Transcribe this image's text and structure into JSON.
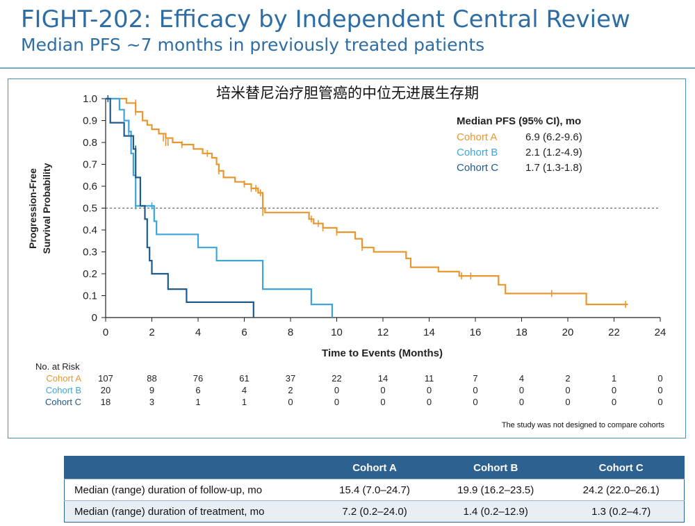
{
  "header": {
    "title": "FIGHT-202: Efficacy by Independent Central Review",
    "subtitle": "Median PFS ~7 months in previously treated patients"
  },
  "chart_data": {
    "type": "line",
    "title": "培米替尼治疗胆管癌的中位无进展生存期",
    "xlabel": "Time to Events (Months)",
    "ylabel": [
      "Progression-Free",
      "Survival Probability"
    ],
    "xlim": [
      0,
      24
    ],
    "ylim": [
      0,
      1.0
    ],
    "xticks": [
      "0",
      "2",
      "4",
      "6",
      "8",
      "10",
      "12",
      "14",
      "16",
      "18",
      "20",
      "22",
      "24"
    ],
    "yticks": [
      "0",
      "0.1",
      "0.2",
      "0.3",
      "0.4",
      "0.5",
      "0.6",
      "0.7",
      "0.8",
      "0.9",
      "1.0"
    ],
    "reference_line_y": 0.5,
    "legend": {
      "title": "Median PFS (95% CI), mo",
      "position": "top-right",
      "entries": [
        {
          "name": "Cohort A",
          "value": "6.9 (6.2-9.6)",
          "color": "#e8962e"
        },
        {
          "name": "Cohort B",
          "value": "2.1 (1.2-4.9)",
          "color": "#3ea5dc"
        },
        {
          "name": "Cohort C",
          "value": "1.7 (1.3-1.8)",
          "color": "#1e5a8c"
        }
      ]
    },
    "series": [
      {
        "name": "Cohort A",
        "color": "#e8962e",
        "points": [
          [
            0,
            1.0
          ],
          [
            0.9,
            1.0
          ],
          [
            0.9,
            0.98
          ],
          [
            1.3,
            0.98
          ],
          [
            1.3,
            0.94
          ],
          [
            1.6,
            0.94
          ],
          [
            1.6,
            0.9
          ],
          [
            1.8,
            0.9
          ],
          [
            1.8,
            0.88
          ],
          [
            2.0,
            0.88
          ],
          [
            2.0,
            0.86
          ],
          [
            2.3,
            0.86
          ],
          [
            2.3,
            0.84
          ],
          [
            2.6,
            0.84
          ],
          [
            2.6,
            0.82
          ],
          [
            2.9,
            0.82
          ],
          [
            2.9,
            0.8
          ],
          [
            3.3,
            0.8
          ],
          [
            3.3,
            0.79
          ],
          [
            3.8,
            0.79
          ],
          [
            3.8,
            0.77
          ],
          [
            4.2,
            0.77
          ],
          [
            4.2,
            0.75
          ],
          [
            4.6,
            0.75
          ],
          [
            4.6,
            0.73
          ],
          [
            4.8,
            0.73
          ],
          [
            4.8,
            0.7
          ],
          [
            4.9,
            0.7
          ],
          [
            4.9,
            0.67
          ],
          [
            5.1,
            0.67
          ],
          [
            5.1,
            0.64
          ],
          [
            5.6,
            0.64
          ],
          [
            5.6,
            0.62
          ],
          [
            6.0,
            0.62
          ],
          [
            6.0,
            0.61
          ],
          [
            6.3,
            0.61
          ],
          [
            6.3,
            0.59
          ],
          [
            6.6,
            0.59
          ],
          [
            6.6,
            0.57
          ],
          [
            6.8,
            0.57
          ],
          [
            6.8,
            0.5
          ],
          [
            6.9,
            0.5
          ],
          [
            6.9,
            0.48
          ],
          [
            8.8,
            0.48
          ],
          [
            8.8,
            0.45
          ],
          [
            9.0,
            0.45
          ],
          [
            9.0,
            0.43
          ],
          [
            9.4,
            0.43
          ],
          [
            9.4,
            0.41
          ],
          [
            10.0,
            0.41
          ],
          [
            10.0,
            0.39
          ],
          [
            10.8,
            0.39
          ],
          [
            10.8,
            0.36
          ],
          [
            11.1,
            0.36
          ],
          [
            11.1,
            0.32
          ],
          [
            11.6,
            0.32
          ],
          [
            11.6,
            0.3
          ],
          [
            13.0,
            0.3
          ],
          [
            13.0,
            0.27
          ],
          [
            13.2,
            0.27
          ],
          [
            13.2,
            0.23
          ],
          [
            14.4,
            0.23
          ],
          [
            14.4,
            0.21
          ],
          [
            15.3,
            0.21
          ],
          [
            15.3,
            0.19
          ],
          [
            17.0,
            0.19
          ],
          [
            17.0,
            0.15
          ],
          [
            17.3,
            0.15
          ],
          [
            17.3,
            0.11
          ],
          [
            20.8,
            0.11
          ],
          [
            20.8,
            0.06
          ],
          [
            22.6,
            0.06
          ]
        ],
        "censors": [
          [
            1.3,
            0.98
          ],
          [
            1.3,
            0.94
          ],
          [
            2.5,
            0.82
          ],
          [
            2.6,
            0.8
          ],
          [
            2.7,
            0.8
          ],
          [
            3.3,
            0.79
          ],
          [
            4.4,
            0.75
          ],
          [
            4.9,
            0.67
          ],
          [
            6.0,
            0.61
          ],
          [
            6.3,
            0.59
          ],
          [
            6.5,
            0.59
          ],
          [
            6.7,
            0.57
          ],
          [
            6.8,
            0.52
          ],
          [
            6.8,
            0.48
          ],
          [
            8.9,
            0.45
          ],
          [
            9.2,
            0.43
          ],
          [
            9.4,
            0.41
          ],
          [
            10.0,
            0.39
          ],
          [
            11.1,
            0.34
          ],
          [
            11.1,
            0.32
          ],
          [
            15.4,
            0.19
          ],
          [
            15.8,
            0.19
          ],
          [
            19.3,
            0.11
          ],
          [
            22.5,
            0.06
          ]
        ]
      },
      {
        "name": "Cohort B",
        "color": "#3ea5dc",
        "points": [
          [
            0,
            1.0
          ],
          [
            0.6,
            1.0
          ],
          [
            0.6,
            0.95
          ],
          [
            0.8,
            0.95
          ],
          [
            0.8,
            0.9
          ],
          [
            1.0,
            0.9
          ],
          [
            1.0,
            0.85
          ],
          [
            1.1,
            0.85
          ],
          [
            1.1,
            0.75
          ],
          [
            1.2,
            0.75
          ],
          [
            1.2,
            0.65
          ],
          [
            1.3,
            0.65
          ],
          [
            1.3,
            0.51
          ],
          [
            2.1,
            0.51
          ],
          [
            2.1,
            0.44
          ],
          [
            2.2,
            0.44
          ],
          [
            2.2,
            0.38
          ],
          [
            4.0,
            0.38
          ],
          [
            4.0,
            0.32
          ],
          [
            4.8,
            0.32
          ],
          [
            4.8,
            0.26
          ],
          [
            6.8,
            0.26
          ],
          [
            6.8,
            0.13
          ],
          [
            8.9,
            0.13
          ],
          [
            8.9,
            0.06
          ],
          [
            9.8,
            0.06
          ],
          [
            9.8,
            0.0
          ]
        ],
        "censors": [
          [
            0.6,
            0.97
          ],
          [
            1.0,
            0.85
          ],
          [
            1.3,
            0.51
          ],
          [
            2.0,
            0.51
          ]
        ]
      },
      {
        "name": "Cohort C",
        "color": "#1e5a8c",
        "points": [
          [
            0,
            1.0
          ],
          [
            0.2,
            1.0
          ],
          [
            0.2,
            0.89
          ],
          [
            0.8,
            0.89
          ],
          [
            0.8,
            0.83
          ],
          [
            1.2,
            0.83
          ],
          [
            1.2,
            0.77
          ],
          [
            1.3,
            0.77
          ],
          [
            1.3,
            0.64
          ],
          [
            1.5,
            0.64
          ],
          [
            1.5,
            0.51
          ],
          [
            1.7,
            0.51
          ],
          [
            1.7,
            0.45
          ],
          [
            1.8,
            0.45
          ],
          [
            1.8,
            0.39
          ],
          [
            1.8,
            0.32
          ],
          [
            1.9,
            0.32
          ],
          [
            1.9,
            0.26
          ],
          [
            2.0,
            0.26
          ],
          [
            2.0,
            0.2
          ],
          [
            2.7,
            0.2
          ],
          [
            2.7,
            0.13
          ],
          [
            3.5,
            0.13
          ],
          [
            3.5,
            0.07
          ],
          [
            6.4,
            0.07
          ],
          [
            6.4,
            0.0
          ]
        ],
        "censors": [
          [
            0.1,
            1.0
          ],
          [
            1.3,
            0.77
          ]
        ]
      }
    ],
    "at_risk": {
      "title": "No. at Risk",
      "times": [
        0,
        2,
        4,
        6,
        8,
        10,
        12,
        14,
        16,
        18,
        20,
        22,
        24
      ],
      "rows": [
        {
          "name": "Cohort A",
          "values": [
            "107",
            "88",
            "76",
            "61",
            "37",
            "22",
            "14",
            "11",
            "7",
            "4",
            "2",
            "1",
            "0"
          ]
        },
        {
          "name": "Cohort B",
          "values": [
            "20",
            "9",
            "6",
            "4",
            "2",
            "0",
            "0",
            "0",
            "0",
            "0",
            "0",
            "0",
            "0"
          ]
        },
        {
          "name": "Cohort C",
          "values": [
            "18",
            "3",
            "1",
            "1",
            "0",
            "0",
            "0",
            "0",
            "0",
            "0",
            "0",
            "0",
            "0"
          ]
        }
      ]
    },
    "footnote": "The study was not designed to compare cohorts"
  },
  "summary_table": {
    "columns": [
      "",
      "Cohort A",
      "Cohort B",
      "Cohort C"
    ],
    "rows": [
      {
        "label": "Median (range) duration of follow-up, mo",
        "values": [
          "15.4 (7.0–24.7)",
          "19.9 (16.2–23.5)",
          "24.2 (22.0–26.1)"
        ]
      },
      {
        "label": "Median (range) duration of treatment, mo",
        "values": [
          "7.2 (0.2–24.0)",
          "1.4 (0.2–12.9)",
          "1.3 (0.2–4.7)"
        ]
      }
    ]
  }
}
